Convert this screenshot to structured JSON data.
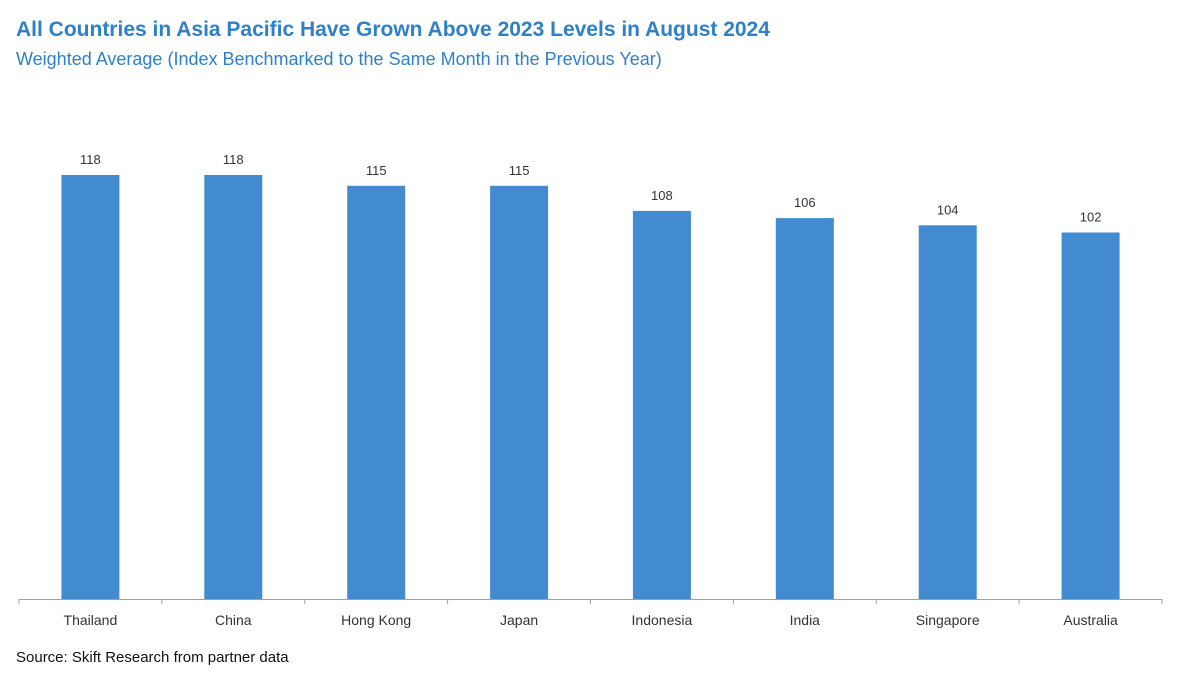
{
  "header": {
    "title": "All Countries in Asia Pacific Have Grown Above 2023 Levels in August 2024",
    "subtitle": "Weighted Average (Index Benchmarked to the Same Month in the Previous Year)"
  },
  "footer": {
    "source": "Source: Skift Research from partner data"
  },
  "colors": {
    "bar": "#428bd0",
    "title": "#2f80c8",
    "axis": "#9aa3ad",
    "label_text": "#333333"
  },
  "chart_data": {
    "type": "bar",
    "title": "All Countries in Asia Pacific Have Grown Above 2023 Levels in August 2024",
    "subtitle": "Weighted Average (Index Benchmarked to the Same Month in the Previous Year)",
    "categories": [
      "Thailand",
      "China",
      "Hong Kong",
      "Japan",
      "Indonesia",
      "India",
      "Singapore",
      "Australia"
    ],
    "values": [
      118,
      118,
      115,
      115,
      108,
      106,
      104,
      102
    ],
    "data_labels": [
      "118",
      "118",
      "115",
      "115",
      "108",
      "106",
      "104",
      "102"
    ],
    "xlabel": "",
    "ylabel": "",
    "ylim": [
      0,
      118
    ],
    "grid": false,
    "legend": "none"
  }
}
